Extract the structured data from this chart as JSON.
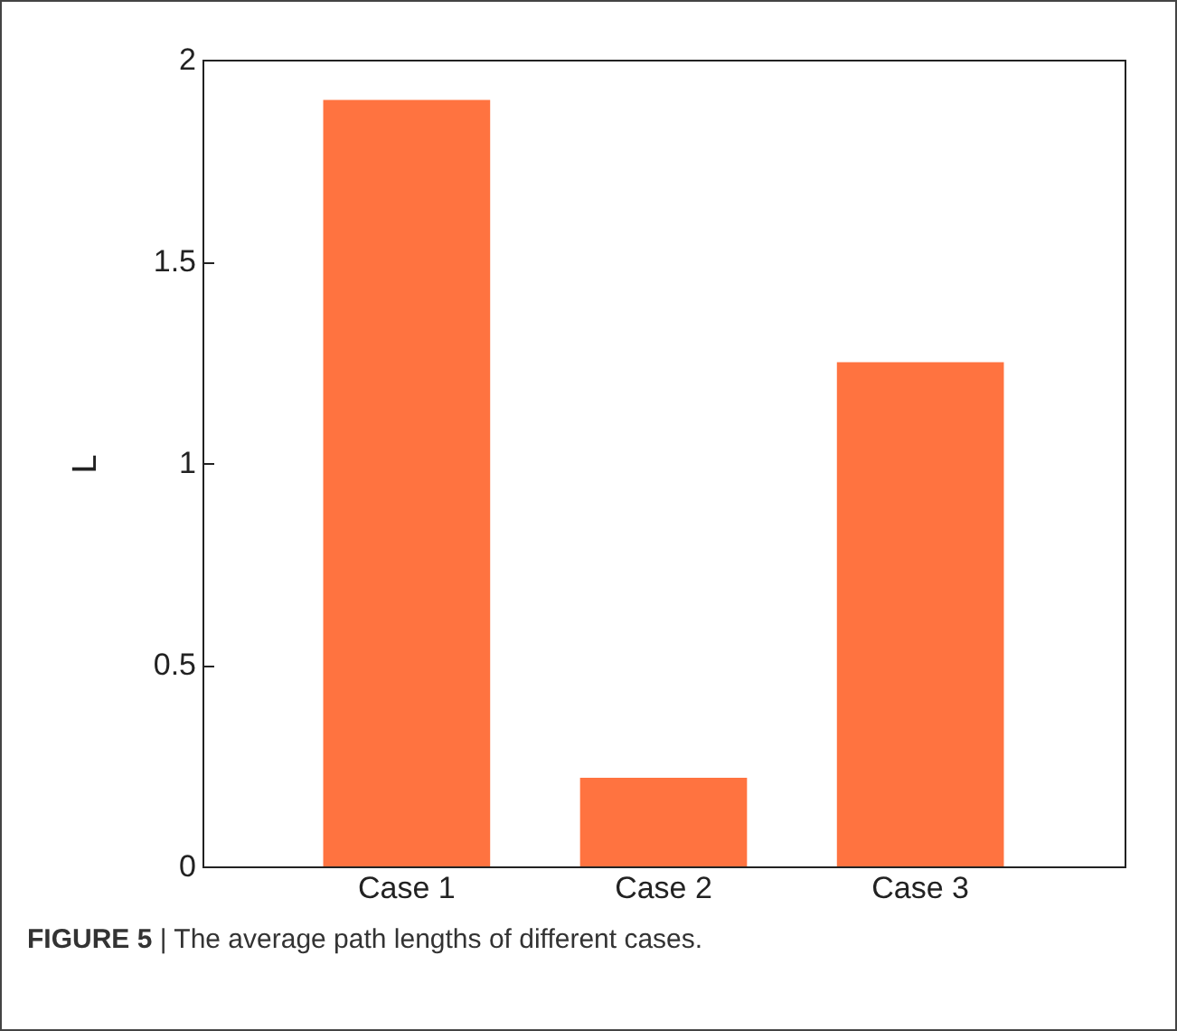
{
  "chart_data": {
    "type": "bar",
    "ylabel": "L",
    "categories": [
      "Case 1",
      "Case 2",
      "Case 3"
    ],
    "values": [
      1.9,
      0.22,
      1.25
    ],
    "color": "#ff7340",
    "ylim": [
      0,
      2
    ],
    "yticks": [
      0,
      0.5,
      1,
      1.5,
      2
    ],
    "grid": false,
    "annotations": [
      "FIGURE 5 | The average path lengths of different cases."
    ]
  }
}
